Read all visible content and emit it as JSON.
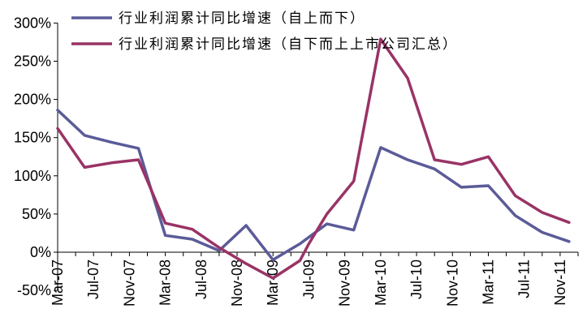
{
  "chart_data": {
    "type": "line",
    "x": [
      "Mar-07",
      "May-07",
      "Jul-07",
      "Sep-07",
      "Nov-07",
      "Jan-08",
      "Mar-08",
      "May-08",
      "Jul-08",
      "Sep-08",
      "Nov-08",
      "Jan-09",
      "Mar-09",
      "May-09",
      "Jul-09",
      "Sep-09",
      "Nov-09",
      "Jan-10",
      "Mar-10",
      "May-10",
      "Jul-10",
      "Sep-10",
      "Nov-10",
      "Jan-11",
      "Mar-11",
      "May-11",
      "Jul-11",
      "Sep-11",
      "Nov-11",
      "Jan-12"
    ],
    "x_tick_labels": [
      "Mar-07",
      "Jul-07",
      "Nov-07",
      "Mar-08",
      "Jul-08",
      "Nov-08",
      "Mar-09",
      "Jul-09",
      "Nov-09",
      "Mar-10",
      "Jul-10",
      "Nov-10",
      "Mar-11",
      "Jul-11",
      "Nov-11"
    ],
    "series": [
      {
        "name": "行业利润累计同比增速（自上而下）",
        "color": "#5b5b99",
        "points": [
          [
            "Mar-07",
            186
          ],
          [
            "Jun-07",
            153
          ],
          [
            "Sep-07",
            144
          ],
          [
            "Dec-07",
            136
          ],
          [
            "Mar-08",
            22
          ],
          [
            "Jun-08",
            17
          ],
          [
            "Sep-08",
            2
          ],
          [
            "Dec-08",
            35
          ],
          [
            "Mar-09",
            -10
          ],
          [
            "Jun-09",
            11
          ],
          [
            "Sep-09",
            37
          ],
          [
            "Dec-09",
            29
          ],
          [
            "Mar-10",
            137
          ],
          [
            "Jun-10",
            121
          ],
          [
            "Sep-10",
            109
          ],
          [
            "Dec-10",
            85
          ],
          [
            "Mar-11",
            87
          ],
          [
            "Jun-11",
            48
          ],
          [
            "Sep-11",
            26
          ],
          [
            "Dec-11",
            14
          ]
        ]
      },
      {
        "name": "行业利润累计同比增速（自下而上上市公司汇总）",
        "color": "#993366",
        "points": [
          [
            "Mar-07",
            162
          ],
          [
            "Jun-07",
            111
          ],
          [
            "Sep-07",
            117
          ],
          [
            "Dec-07",
            121
          ],
          [
            "Mar-08",
            38
          ],
          [
            "Jun-08",
            30
          ],
          [
            "Sep-08",
            6
          ],
          [
            "Dec-08",
            -15
          ],
          [
            "Mar-09",
            -34
          ],
          [
            "Jun-09",
            -11
          ],
          [
            "Jul-09",
            11
          ],
          [
            "Sep-09",
            50
          ],
          [
            "Dec-09",
            93
          ],
          [
            "Mar-10",
            279
          ],
          [
            "Jun-10",
            228
          ],
          [
            "Sep-10",
            121
          ],
          [
            "Dec-10",
            115
          ],
          [
            "Mar-11",
            125
          ],
          [
            "Jun-11",
            74
          ],
          [
            "Sep-11",
            52
          ],
          [
            "Dec-11",
            39
          ]
        ]
      }
    ],
    "y_tick_labels": [
      "300%",
      "250%",
      "200%",
      "150%",
      "100%",
      "50%",
      "0%",
      "-50%"
    ],
    "y_ticks": [
      300,
      250,
      200,
      150,
      100,
      50,
      0,
      -50
    ],
    "ylim": [
      -50,
      300
    ],
    "grid": false,
    "legend_position": "top"
  }
}
